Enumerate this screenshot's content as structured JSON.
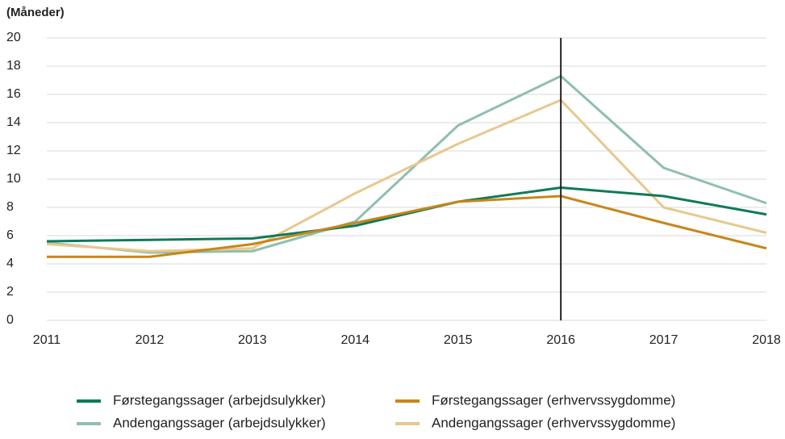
{
  "chart_data": {
    "type": "line",
    "y_label": "(Måneder)",
    "x": [
      2011,
      2012,
      2013,
      2014,
      2015,
      2016,
      2017,
      2018
    ],
    "xlim": [
      2011,
      2018
    ],
    "xticks": [
      2011,
      2012,
      2013,
      2014,
      2015,
      2016,
      2017,
      2018
    ],
    "ylim": [
      0,
      20
    ],
    "yticks": [
      0,
      2,
      4,
      6,
      8,
      10,
      12,
      14,
      16,
      18,
      20
    ],
    "grid": true,
    "vline": 2016,
    "legend": "bottom",
    "series": [
      {
        "name": "Førstegangssager (arbejdsulykker)",
        "color": "#0f7a5a",
        "values": [
          5.6,
          5.7,
          5.8,
          6.7,
          8.4,
          9.4,
          8.8,
          7.5
        ]
      },
      {
        "name": "Førstegangssager (erhvervssygdomme)",
        "color": "#c8861a",
        "values": [
          4.5,
          4.5,
          5.4,
          6.9,
          8.4,
          8.8,
          6.9,
          5.1
        ]
      },
      {
        "name": "Andengangssager (arbejdsulykker)",
        "color": "#8fbfae",
        "values": [
          5.5,
          4.8,
          4.9,
          7.0,
          13.8,
          17.3,
          10.8,
          8.3
        ]
      },
      {
        "name": "Andengangssager (erhvervssygdomme)",
        "color": "#e8c88f",
        "values": [
          5.4,
          4.9,
          5.1,
          9.0,
          12.5,
          15.6,
          8.0,
          6.2
        ]
      }
    ]
  }
}
